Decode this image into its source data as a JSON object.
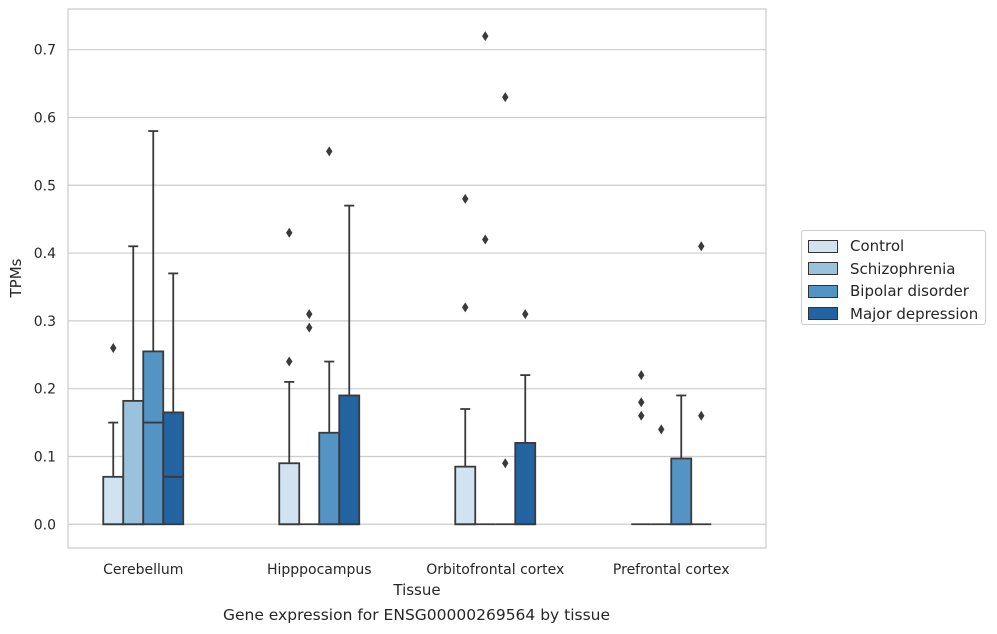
{
  "chart_data": {
    "type": "box",
    "title": "",
    "caption": "Gene expression for ENSG00000269564 by tissue",
    "xlabel": "Tissue",
    "ylabel": "TPMs",
    "ylim": [
      -0.035,
      0.76
    ],
    "yticks": [
      0.0,
      0.1,
      0.2,
      0.3,
      0.4,
      0.5,
      0.6,
      0.7
    ],
    "ytick_labels": [
      "0.0",
      "0.1",
      "0.2",
      "0.3",
      "0.4",
      "0.5",
      "0.6",
      "0.7"
    ],
    "grid": true,
    "legend_position": "right",
    "categories": [
      "Cerebellum",
      "Hipppocampus",
      "Orbitofrontal cortex",
      "Prefrontal cortex"
    ],
    "series": [
      {
        "name": "Control",
        "color": "#d1e2f1",
        "boxes": [
          {
            "whislo": 0.0,
            "q1": 0.0,
            "med": 0.0,
            "q3": 0.07,
            "whishi": 0.15,
            "fliers": [
              0.26
            ]
          },
          {
            "whislo": 0.0,
            "q1": 0.0,
            "med": 0.0,
            "q3": 0.09,
            "whishi": 0.21,
            "fliers": [
              0.24,
              0.43
            ]
          },
          {
            "whislo": 0.0,
            "q1": 0.0,
            "med": 0.0,
            "q3": 0.085,
            "whishi": 0.17,
            "fliers": [
              0.32,
              0.48
            ]
          },
          {
            "whislo": 0.0,
            "q1": 0.0,
            "med": 0.0,
            "q3": 0.0,
            "whishi": 0.0,
            "fliers": [
              0.16,
              0.18,
              0.22
            ]
          }
        ]
      },
      {
        "name": "Schizophrenia",
        "color": "#9ac2dc",
        "boxes": [
          {
            "whislo": 0.0,
            "q1": 0.0,
            "med": 0.0,
            "q3": 0.182,
            "whishi": 0.41,
            "fliers": []
          },
          {
            "whislo": 0.0,
            "q1": 0.0,
            "med": 0.0,
            "q3": 0.0,
            "whishi": 0.0,
            "fliers": [
              0.29,
              0.31
            ]
          },
          {
            "whislo": 0.0,
            "q1": 0.0,
            "med": 0.0,
            "q3": 0.0,
            "whishi": 0.0,
            "fliers": [
              0.42,
              0.72
            ]
          },
          {
            "whislo": 0.0,
            "q1": 0.0,
            "med": 0.0,
            "q3": 0.0,
            "whishi": 0.0,
            "fliers": [
              0.14
            ]
          }
        ]
      },
      {
        "name": "Bipolar disorder",
        "color": "#5394c4",
        "boxes": [
          {
            "whislo": 0.0,
            "q1": 0.0,
            "med": 0.15,
            "q3": 0.255,
            "whishi": 0.58,
            "fliers": []
          },
          {
            "whislo": 0.0,
            "q1": 0.0,
            "med": 0.0,
            "q3": 0.135,
            "whishi": 0.24,
            "fliers": [
              0.55
            ]
          },
          {
            "whislo": 0.0,
            "q1": 0.0,
            "med": 0.0,
            "q3": 0.0,
            "whishi": 0.0,
            "fliers": [
              0.09,
              0.63
            ]
          },
          {
            "whislo": 0.0,
            "q1": 0.0,
            "med": 0.0,
            "q3": 0.097,
            "whishi": 0.19,
            "fliers": []
          }
        ]
      },
      {
        "name": "Major depression",
        "color": "#2463a2",
        "boxes": [
          {
            "whislo": 0.0,
            "q1": 0.0,
            "med": 0.07,
            "q3": 0.165,
            "whishi": 0.37,
            "fliers": []
          },
          {
            "whislo": 0.0,
            "q1": 0.0,
            "med": 0.0,
            "q3": 0.19,
            "whishi": 0.47,
            "fliers": []
          },
          {
            "whislo": 0.0,
            "q1": 0.0,
            "med": 0.0,
            "q3": 0.12,
            "whishi": 0.22,
            "fliers": [
              0.31
            ]
          },
          {
            "whislo": 0.0,
            "q1": 0.0,
            "med": 0.0,
            "q3": 0.0,
            "whishi": 0.0,
            "fliers": [
              0.16,
              0.41
            ]
          }
        ]
      }
    ]
  }
}
